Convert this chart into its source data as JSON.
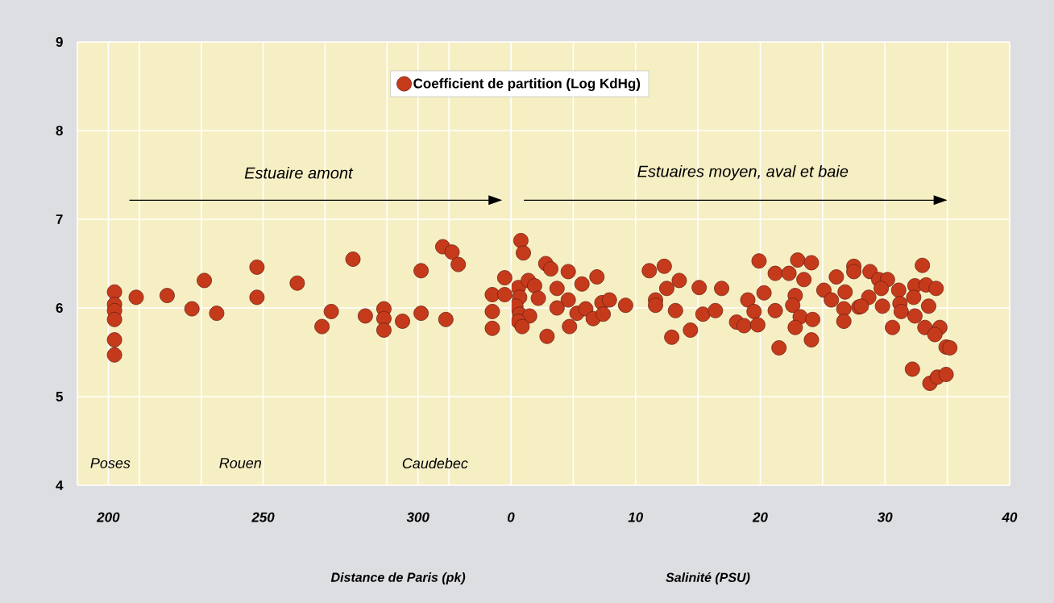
{
  "chart_data": [
    {
      "type": "scatter",
      "xlabel": "Distance de Paris (pk)",
      "xlim": [
        190,
        330
      ],
      "xticks": [
        {
          "value": 190,
          "label": null
        },
        200,
        {
          "value": 210,
          "label": null
        },
        {
          "value": 230,
          "label": null
        },
        250,
        {
          "value": 270,
          "label": null
        },
        {
          "value": 290,
          "label": null
        },
        300,
        {
          "value": 310,
          "label": null
        },
        {
          "value": 330,
          "label": null
        }
      ],
      "ylim": [
        4,
        9
      ],
      "yticks": [
        4,
        5,
        6,
        7,
        8,
        9
      ],
      "grid": true,
      "legend": "top",
      "series": [
        {
          "name": "Coefficient de partition (Log KdHg)",
          "color": "#c63a1c",
          "x": [
            202,
            202,
            202,
            202,
            202,
            202,
            209,
            219,
            227,
            231,
            235,
            248,
            248,
            261,
            269,
            272,
            279,
            283,
            289,
            289,
            289,
            295,
            301,
            301,
            308,
            311,
            313,
            309,
            324,
            324,
            324,
            328,
            328
          ],
          "values": [
            6.18,
            6.04,
            5.97,
            5.87,
            5.64,
            5.47,
            6.12,
            6.14,
            5.99,
            6.31,
            5.94,
            6.46,
            6.12,
            6.28,
            5.79,
            5.96,
            6.55,
            5.91,
            5.99,
            5.88,
            5.75,
            5.85,
            6.42,
            5.94,
            6.69,
            6.63,
            6.49,
            5.87,
            6.15,
            5.96,
            5.77,
            6.34,
            6.15
          ]
        }
      ],
      "annotations": [
        "Estuaire amont",
        "Poses",
        "Rouen",
        "Caudebec"
      ]
    },
    {
      "type": "scatter",
      "xlabel": "Salinité (PSU)",
      "xlim": [
        0,
        40
      ],
      "xticks": [
        0,
        {
          "value": 5,
          "label": null
        },
        10,
        {
          "value": 15,
          "label": null
        },
        20,
        {
          "value": 25,
          "label": null
        },
        30,
        {
          "value": 35,
          "label": null
        },
        40
      ],
      "ylim": [
        4,
        9
      ],
      "yticks": [
        4,
        5,
        6,
        7,
        8,
        9
      ],
      "tick_labels": "x",
      "grid": true,
      "series": [
        {
          "color": "#c63a1c",
          "x": [
            0.8,
            1.0,
            0.6,
            0.7,
            1.4,
            1.9,
            2.2,
            0.4,
            0.7,
            1.5,
            0.6,
            0.9,
            2.9,
            2.8,
            3.2,
            4.6,
            6.9,
            5.7,
            3.7,
            4.6,
            3.7,
            4.7,
            5.3,
            6.0,
            6.6,
            7.3,
            7.9,
            7.4,
            9.2,
            11.1,
            12.3,
            13.5,
            12.5,
            11.6,
            11.6,
            13.2,
            12.9,
            14.4,
            15.1,
            16.9,
            15.4,
            16.4,
            19.9,
            19.0,
            20.3,
            19.5,
            18.1,
            18.7,
            19.8,
            21.2,
            22.3,
            23.0,
            24.1,
            23.5,
            21.2,
            22.8,
            22.6,
            23.2,
            24.2,
            22.8,
            24.1,
            21.5,
            26.1,
            25.1,
            25.7,
            26.8,
            26.7,
            26.7,
            27.5,
            27.5,
            27.9,
            28.8,
            29.5,
            30.2,
            29.7,
            28.7,
            28.1,
            29.8,
            31.1,
            31.2,
            31.3,
            30.6,
            32.4,
            33.3,
            34.1,
            33.0,
            32.3,
            33.5,
            32.4,
            33.2,
            34.4,
            34.0,
            34.9,
            35.2,
            32.2,
            33.6,
            34.2,
            34.9
          ],
          "values": [
            6.76,
            6.62,
            6.23,
            6.12,
            6.31,
            6.25,
            6.11,
            6.02,
            5.93,
            5.91,
            5.85,
            5.79,
            5.68,
            6.5,
            6.44,
            6.41,
            6.35,
            6.27,
            6.22,
            6.09,
            6.0,
            5.79,
            5.94,
            5.99,
            5.88,
            6.06,
            6.09,
            5.93,
            6.03,
            6.42,
            6.47,
            6.31,
            6.22,
            6.09,
            6.03,
            5.97,
            5.67,
            5.75,
            6.23,
            6.22,
            5.93,
            5.97,
            6.53,
            6.09,
            6.17,
            5.96,
            5.84,
            5.8,
            5.81,
            6.39,
            6.39,
            6.54,
            6.51,
            6.32,
            5.97,
            6.14,
            6.03,
            5.9,
            5.87,
            5.78,
            5.64,
            5.55,
            6.35,
            6.2,
            6.09,
            6.18,
            5.99,
            5.85,
            6.47,
            6.41,
            6.01,
            6.41,
            6.32,
            6.32,
            6.22,
            6.12,
            6.02,
            6.02,
            6.2,
            6.05,
            5.96,
            5.78,
            6.25,
            6.26,
            6.22,
            6.48,
            6.12,
            6.02,
            5.91,
            5.78,
            5.78,
            5.7,
            5.56,
            5.55,
            5.31,
            5.15,
            5.22,
            5.25
          ]
        }
      ],
      "annotations": [
        "Estuaires moyen, aval et baie"
      ]
    }
  ]
}
